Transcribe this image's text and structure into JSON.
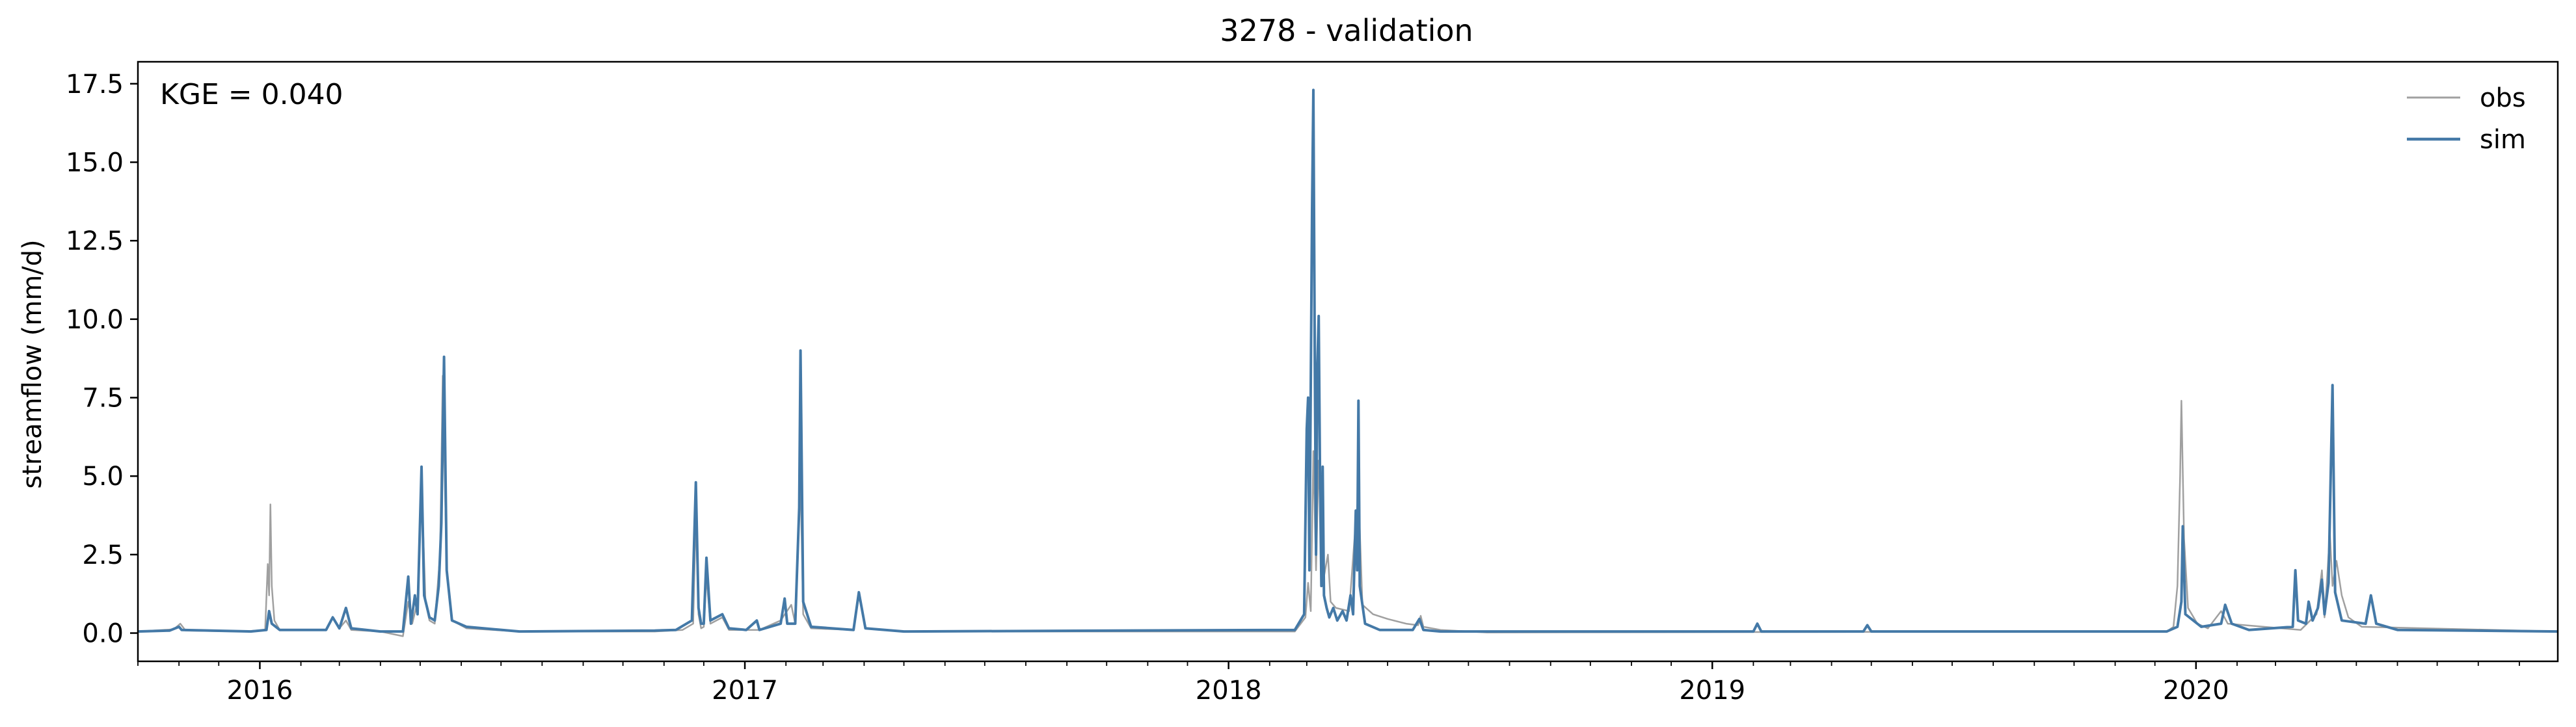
{
  "chart_data": {
    "type": "line",
    "title": "3278 - validation",
    "ylabel": "streamflow (mm/d)",
    "xlabel": "",
    "annotation": "KGE = 0.040",
    "xlim": [
      "2015-10-01",
      "2020-09-30"
    ],
    "ylim": [
      -0.9,
      18.2
    ],
    "yticks": [
      0.0,
      2.5,
      5.0,
      7.5,
      10.0,
      12.5,
      15.0,
      17.5
    ],
    "ytick_labels": [
      "0.0",
      "2.5",
      "5.0",
      "7.5",
      "10.0",
      "12.5",
      "15.0",
      "17.5"
    ],
    "xticks": [
      "2016-01-01",
      "2017-01-01",
      "2018-01-01",
      "2019-01-01",
      "2020-01-01"
    ],
    "xtick_labels": [
      "2016",
      "2017",
      "2018",
      "2019",
      "2020"
    ],
    "grid": false,
    "legend_position": "top-right",
    "series": [
      {
        "name": "obs",
        "color": "#a0a0a0",
        "points": [
          [
            "2015-10-01",
            0.05
          ],
          [
            "2015-10-28",
            0.12
          ],
          [
            "2015-11-02",
            0.3
          ],
          [
            "2015-11-06",
            0.08
          ],
          [
            "2015-12-20",
            0.05
          ],
          [
            "2016-01-05",
            0.1
          ],
          [
            "2016-01-07",
            2.2
          ],
          [
            "2016-01-08",
            1.2
          ],
          [
            "2016-01-09",
            4.1
          ],
          [
            "2016-01-10",
            1.5
          ],
          [
            "2016-01-12",
            0.4
          ],
          [
            "2016-01-16",
            0.1
          ],
          [
            "2016-02-20",
            0.1
          ],
          [
            "2016-02-25",
            0.5
          ],
          [
            "2016-03-01",
            0.15
          ],
          [
            "2016-03-06",
            0.4
          ],
          [
            "2016-03-10",
            0.1
          ],
          [
            "2016-04-01",
            0.05
          ],
          [
            "2016-04-18",
            -0.1
          ],
          [
            "2016-04-22",
            1.0
          ],
          [
            "2016-04-25",
            0.3
          ],
          [
            "2016-04-29",
            1.0
          ],
          [
            "2016-05-02",
            4.8
          ],
          [
            "2016-05-05",
            1.0
          ],
          [
            "2016-05-08",
            0.4
          ],
          [
            "2016-05-12",
            0.3
          ],
          [
            "2016-05-16",
            2.5
          ],
          [
            "2016-05-18",
            8.2
          ],
          [
            "2016-05-21",
            2.0
          ],
          [
            "2016-05-25",
            0.4
          ],
          [
            "2016-06-05",
            0.15
          ],
          [
            "2016-07-15",
            0.05
          ],
          [
            "2016-10-25",
            0.05
          ],
          [
            "2016-11-15",
            0.1
          ],
          [
            "2016-11-23",
            0.3
          ],
          [
            "2016-11-25",
            3.8
          ],
          [
            "2016-11-27",
            0.6
          ],
          [
            "2016-11-29",
            0.15
          ],
          [
            "2016-12-01",
            0.2
          ],
          [
            "2016-12-03",
            1.8
          ],
          [
            "2016-12-06",
            0.3
          ],
          [
            "2016-12-15",
            0.5
          ],
          [
            "2016-12-20",
            0.1
          ],
          [
            "2017-01-12",
            0.1
          ],
          [
            "2017-01-28",
            0.4
          ],
          [
            "2017-02-05",
            0.9
          ],
          [
            "2017-02-08",
            0.3
          ],
          [
            "2017-02-12",
            5.0
          ],
          [
            "2017-02-14",
            0.6
          ],
          [
            "2017-02-20",
            0.15
          ],
          [
            "2017-03-24",
            0.1
          ],
          [
            "2017-03-28",
            1.2
          ],
          [
            "2017-04-02",
            0.15
          ],
          [
            "2017-05-01",
            0.05
          ],
          [
            "2018-02-20",
            0.05
          ],
          [
            "2018-02-28",
            0.5
          ],
          [
            "2018-03-02",
            1.6
          ],
          [
            "2018-03-04",
            0.7
          ],
          [
            "2018-03-06",
            5.8
          ],
          [
            "2018-03-08",
            2.0
          ],
          [
            "2018-03-10",
            5.5
          ],
          [
            "2018-03-12",
            3.0
          ],
          [
            "2018-03-14",
            1.8
          ],
          [
            "2018-03-17",
            2.5
          ],
          [
            "2018-03-19",
            1.0
          ],
          [
            "2018-03-23",
            0.8
          ],
          [
            "2018-04-02",
            0.7
          ],
          [
            "2018-04-06",
            3.0
          ],
          [
            "2018-04-09",
            4.5
          ],
          [
            "2018-04-12",
            0.9
          ],
          [
            "2018-04-20",
            0.6
          ],
          [
            "2018-05-01",
            0.45
          ],
          [
            "2018-05-15",
            0.3
          ],
          [
            "2018-05-24",
            0.25
          ],
          [
            "2018-05-26",
            0.55
          ],
          [
            "2018-05-28",
            0.2
          ],
          [
            "2018-06-10",
            0.1
          ],
          [
            "2018-07-15",
            0.02
          ],
          [
            "2019-12-10",
            0.05
          ],
          [
            "2019-12-15",
            0.2
          ],
          [
            "2019-12-18",
            1.5
          ],
          [
            "2019-12-20",
            5.0
          ],
          [
            "2019-12-21",
            7.4
          ],
          [
            "2019-12-23",
            3.0
          ],
          [
            "2019-12-26",
            0.8
          ],
          [
            "2020-01-02",
            0.3
          ],
          [
            "2020-01-10",
            0.15
          ],
          [
            "2020-01-20",
            0.7
          ],
          [
            "2020-01-25",
            0.3
          ],
          [
            "2020-03-20",
            0.1
          ],
          [
            "2020-04-01",
            0.6
          ],
          [
            "2020-04-05",
            2.0
          ],
          [
            "2020-04-07",
            0.5
          ],
          [
            "2020-04-09",
            1.8
          ],
          [
            "2020-04-11",
            3.2
          ],
          [
            "2020-04-13",
            1.5
          ],
          [
            "2020-04-16",
            2.3
          ],
          [
            "2020-04-20",
            1.2
          ],
          [
            "2020-04-25",
            0.5
          ],
          [
            "2020-05-05",
            0.2
          ],
          [
            "2020-09-30",
            0.05
          ]
        ]
      },
      {
        "name": "sim",
        "color": "#4479a7",
        "points": [
          [
            "2015-10-01",
            0.05
          ],
          [
            "2015-10-25",
            0.08
          ],
          [
            "2015-11-01",
            0.2
          ],
          [
            "2015-11-03",
            0.1
          ],
          [
            "2015-12-25",
            0.05
          ],
          [
            "2016-01-06",
            0.1
          ],
          [
            "2016-01-08",
            0.7
          ],
          [
            "2016-01-10",
            0.3
          ],
          [
            "2016-01-16",
            0.1
          ],
          [
            "2016-02-20",
            0.1
          ],
          [
            "2016-02-25",
            0.5
          ],
          [
            "2016-03-01",
            0.15
          ],
          [
            "2016-03-06",
            0.8
          ],
          [
            "2016-03-10",
            0.15
          ],
          [
            "2016-04-01",
            0.05
          ],
          [
            "2016-04-18",
            0.05
          ],
          [
            "2016-04-22",
            1.8
          ],
          [
            "2016-04-24",
            0.3
          ],
          [
            "2016-04-27",
            1.2
          ],
          [
            "2016-04-29",
            0.6
          ],
          [
            "2016-05-02",
            5.3
          ],
          [
            "2016-05-04",
            1.2
          ],
          [
            "2016-05-08",
            0.5
          ],
          [
            "2016-05-12",
            0.4
          ],
          [
            "2016-05-15",
            1.5
          ],
          [
            "2016-05-17",
            3.5
          ],
          [
            "2016-05-19",
            8.8
          ],
          [
            "2016-05-21",
            2.0
          ],
          [
            "2016-05-25",
            0.4
          ],
          [
            "2016-06-05",
            0.2
          ],
          [
            "2016-07-15",
            0.05
          ],
          [
            "2016-10-25",
            0.08
          ],
          [
            "2016-11-10",
            0.1
          ],
          [
            "2016-11-22",
            0.4
          ],
          [
            "2016-11-25",
            4.8
          ],
          [
            "2016-11-27",
            0.8
          ],
          [
            "2016-11-29",
            0.3
          ],
          [
            "2016-12-01",
            0.3
          ],
          [
            "2016-12-03",
            2.4
          ],
          [
            "2016-12-06",
            0.4
          ],
          [
            "2016-12-15",
            0.6
          ],
          [
            "2016-12-20",
            0.15
          ],
          [
            "2017-01-02",
            0.1
          ],
          [
            "2017-01-10",
            0.4
          ],
          [
            "2017-01-12",
            0.1
          ],
          [
            "2017-01-28",
            0.3
          ],
          [
            "2017-01-31",
            1.1
          ],
          [
            "2017-02-02",
            0.3
          ],
          [
            "2017-02-08",
            0.3
          ],
          [
            "2017-02-11",
            4.0
          ],
          [
            "2017-02-12",
            9.0
          ],
          [
            "2017-02-14",
            1.0
          ],
          [
            "2017-02-20",
            0.2
          ],
          [
            "2017-03-24",
            0.1
          ],
          [
            "2017-03-28",
            1.3
          ],
          [
            "2017-04-02",
            0.15
          ],
          [
            "2017-05-01",
            0.05
          ],
          [
            "2018-02-20",
            0.1
          ],
          [
            "2018-02-27",
            0.6
          ],
          [
            "2018-03-01",
            6.5
          ],
          [
            "2018-03-02",
            7.5
          ],
          [
            "2018-03-03",
            2.0
          ],
          [
            "2018-03-05",
            13.5
          ],
          [
            "2018-03-06",
            17.3
          ],
          [
            "2018-03-07",
            9.0
          ],
          [
            "2018-03-08",
            2.5
          ],
          [
            "2018-03-09",
            8.5
          ],
          [
            "2018-03-10",
            10.1
          ],
          [
            "2018-03-11",
            5.0
          ],
          [
            "2018-03-12",
            1.5
          ],
          [
            "2018-03-13",
            5.3
          ],
          [
            "2018-03-14",
            1.2
          ],
          [
            "2018-03-16",
            0.8
          ],
          [
            "2018-03-18",
            0.5
          ],
          [
            "2018-03-21",
            0.8
          ],
          [
            "2018-03-24",
            0.4
          ],
          [
            "2018-03-28",
            0.7
          ],
          [
            "2018-03-31",
            0.4
          ],
          [
            "2018-04-03",
            1.2
          ],
          [
            "2018-04-05",
            0.6
          ],
          [
            "2018-04-07",
            3.9
          ],
          [
            "2018-04-08",
            2.0
          ],
          [
            "2018-04-09",
            7.4
          ],
          [
            "2018-04-10",
            1.5
          ],
          [
            "2018-04-14",
            0.3
          ],
          [
            "2018-04-25",
            0.1
          ],
          [
            "2018-05-20",
            0.1
          ],
          [
            "2018-05-25",
            0.45
          ],
          [
            "2018-05-28",
            0.1
          ],
          [
            "2018-06-10",
            0.05
          ],
          [
            "2019-02-01",
            0.05
          ],
          [
            "2019-02-04",
            0.3
          ],
          [
            "2019-02-07",
            0.05
          ],
          [
            "2019-04-25",
            0.05
          ],
          [
            "2019-04-28",
            0.25
          ],
          [
            "2019-05-01",
            0.05
          ],
          [
            "2019-12-10",
            0.05
          ],
          [
            "2019-12-18",
            0.2
          ],
          [
            "2019-12-21",
            1.0
          ],
          [
            "2019-12-22",
            3.4
          ],
          [
            "2019-12-24",
            0.6
          ],
          [
            "2020-01-05",
            0.2
          ],
          [
            "2020-01-20",
            0.3
          ],
          [
            "2020-01-23",
            0.9
          ],
          [
            "2020-01-28",
            0.3
          ],
          [
            "2020-02-10",
            0.1
          ],
          [
            "2020-03-14",
            0.2
          ],
          [
            "2020-03-16",
            2.0
          ],
          [
            "2020-03-18",
            0.4
          ],
          [
            "2020-03-24",
            0.3
          ],
          [
            "2020-03-26",
            1.0
          ],
          [
            "2020-03-29",
            0.4
          ],
          [
            "2020-04-02",
            0.8
          ],
          [
            "2020-04-05",
            1.7
          ],
          [
            "2020-04-07",
            0.6
          ],
          [
            "2020-04-10",
            1.6
          ],
          [
            "2020-04-13",
            7.9
          ],
          [
            "2020-04-15",
            1.3
          ],
          [
            "2020-04-20",
            0.4
          ],
          [
            "2020-05-08",
            0.3
          ],
          [
            "2020-05-12",
            1.2
          ],
          [
            "2020-05-16",
            0.3
          ],
          [
            "2020-06-01",
            0.1
          ],
          [
            "2020-09-30",
            0.05
          ]
        ]
      }
    ]
  }
}
